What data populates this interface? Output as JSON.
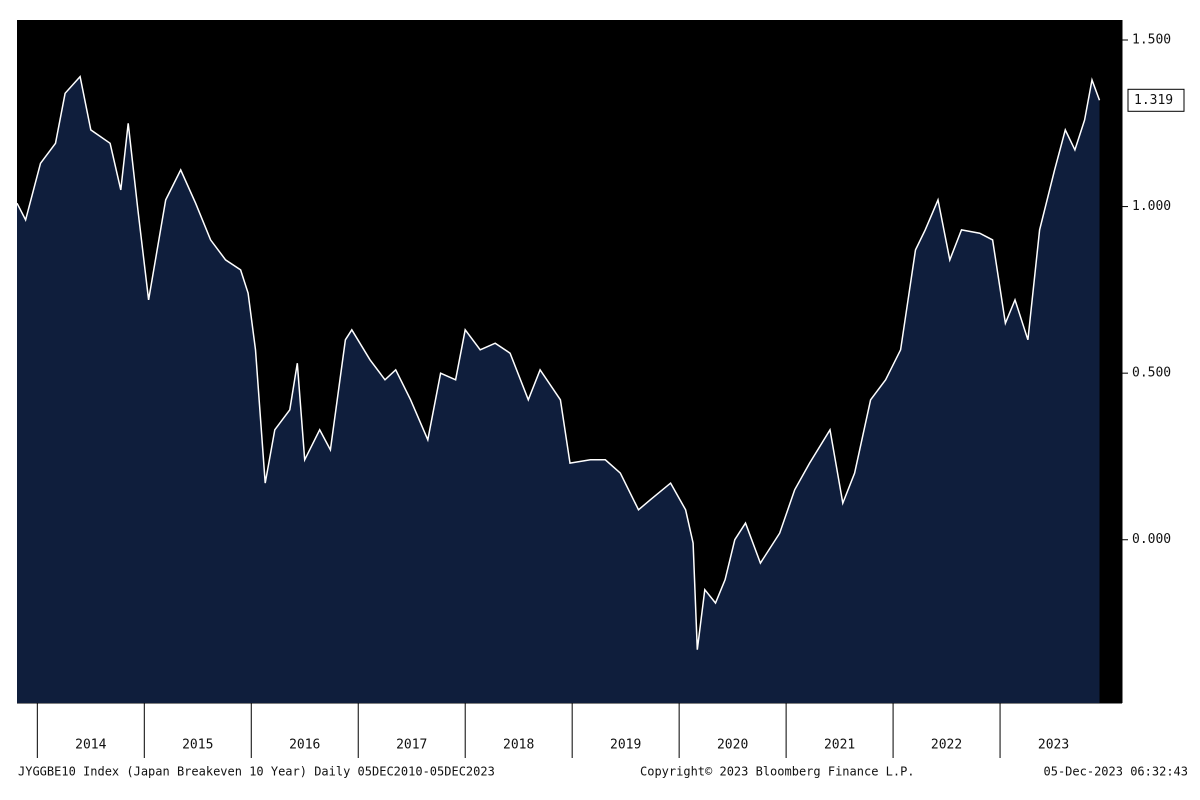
{
  "chart_data": {
    "type": "area",
    "series_label": "JYGGBE10 Index (Japan Breakeven 10 Year)  Daily 05DEC2010-05DEC2023",
    "copyright": "Copyright© 2023 Bloomberg Finance L.P.",
    "timestamp": "05-Dec-2023 06:32:43",
    "x": [
      2013.81,
      2013.89,
      2014.03,
      2014.17,
      2014.26,
      2014.4,
      2014.5,
      2014.68,
      2014.78,
      2014.85,
      2014.94,
      2015.04,
      2015.2,
      2015.34,
      2015.48,
      2015.62,
      2015.76,
      2015.9,
      2015.97,
      2016.04,
      2016.13,
      2016.22,
      2016.36,
      2016.43,
      2016.5,
      2016.64,
      2016.74,
      2016.88,
      2016.94,
      2017.11,
      2017.25,
      2017.35,
      2017.49,
      2017.65,
      2017.77,
      2017.91,
      2018.0,
      2018.14,
      2018.28,
      2018.42,
      2018.59,
      2018.7,
      2018.89,
      2018.98,
      2019.17,
      2019.31,
      2019.45,
      2019.62,
      2019.73,
      2019.92,
      2020.06,
      2020.13,
      2020.17,
      2020.24,
      2020.34,
      2020.43,
      2020.52,
      2020.62,
      2020.76,
      2020.94,
      2021.08,
      2021.22,
      2021.41,
      2021.53,
      2021.64,
      2021.79,
      2021.93,
      2022.07,
      2022.21,
      2022.3,
      2022.42,
      2022.53,
      2022.64,
      2022.81,
      2022.93,
      2023.05,
      2023.14,
      2023.26,
      2023.37,
      2023.51,
      2023.61,
      2023.7,
      2023.79,
      2023.86,
      2023.93
    ],
    "values": [
      1.01,
      0.96,
      1.13,
      1.19,
      1.34,
      1.39,
      1.23,
      1.19,
      1.05,
      1.25,
      0.99,
      0.72,
      1.02,
      1.11,
      1.01,
      0.9,
      0.84,
      0.81,
      0.74,
      0.57,
      0.17,
      0.33,
      0.39,
      0.53,
      0.24,
      0.33,
      0.27,
      0.6,
      0.63,
      0.54,
      0.48,
      0.51,
      0.42,
      0.3,
      0.5,
      0.48,
      0.63,
      0.57,
      0.59,
      0.56,
      0.42,
      0.51,
      0.42,
      0.23,
      0.24,
      0.24,
      0.2,
      0.09,
      0.12,
      0.17,
      0.09,
      -0.01,
      -0.33,
      -0.15,
      -0.19,
      -0.12,
      0.0,
      0.05,
      -0.07,
      0.02,
      0.15,
      0.23,
      0.33,
      0.11,
      0.2,
      0.42,
      0.48,
      0.57,
      0.87,
      0.93,
      1.02,
      0.84,
      0.93,
      0.92,
      0.9,
      0.65,
      0.72,
      0.6,
      0.93,
      1.11,
      1.23,
      1.17,
      1.26,
      1.38,
      1.319
    ],
    "last_value_label": "1.319",
    "color": "#0f1e3c",
    "line_color": "#ffffff",
    "xlim": [
      2013.81,
      2024.14
    ],
    "xticks": [
      2014,
      2015,
      2016,
      2017,
      2018,
      2019,
      2020,
      2021,
      2022,
      2023
    ],
    "ylim": [
      -0.49,
      1.56
    ],
    "yticks": [
      {
        "value": 0,
        "label": "0.000"
      },
      {
        "value": 0.5,
        "label": "0.500"
      },
      {
        "value": 1,
        "label": "1.000"
      },
      {
        "value": 1.5,
        "label": "1.500"
      }
    ]
  }
}
